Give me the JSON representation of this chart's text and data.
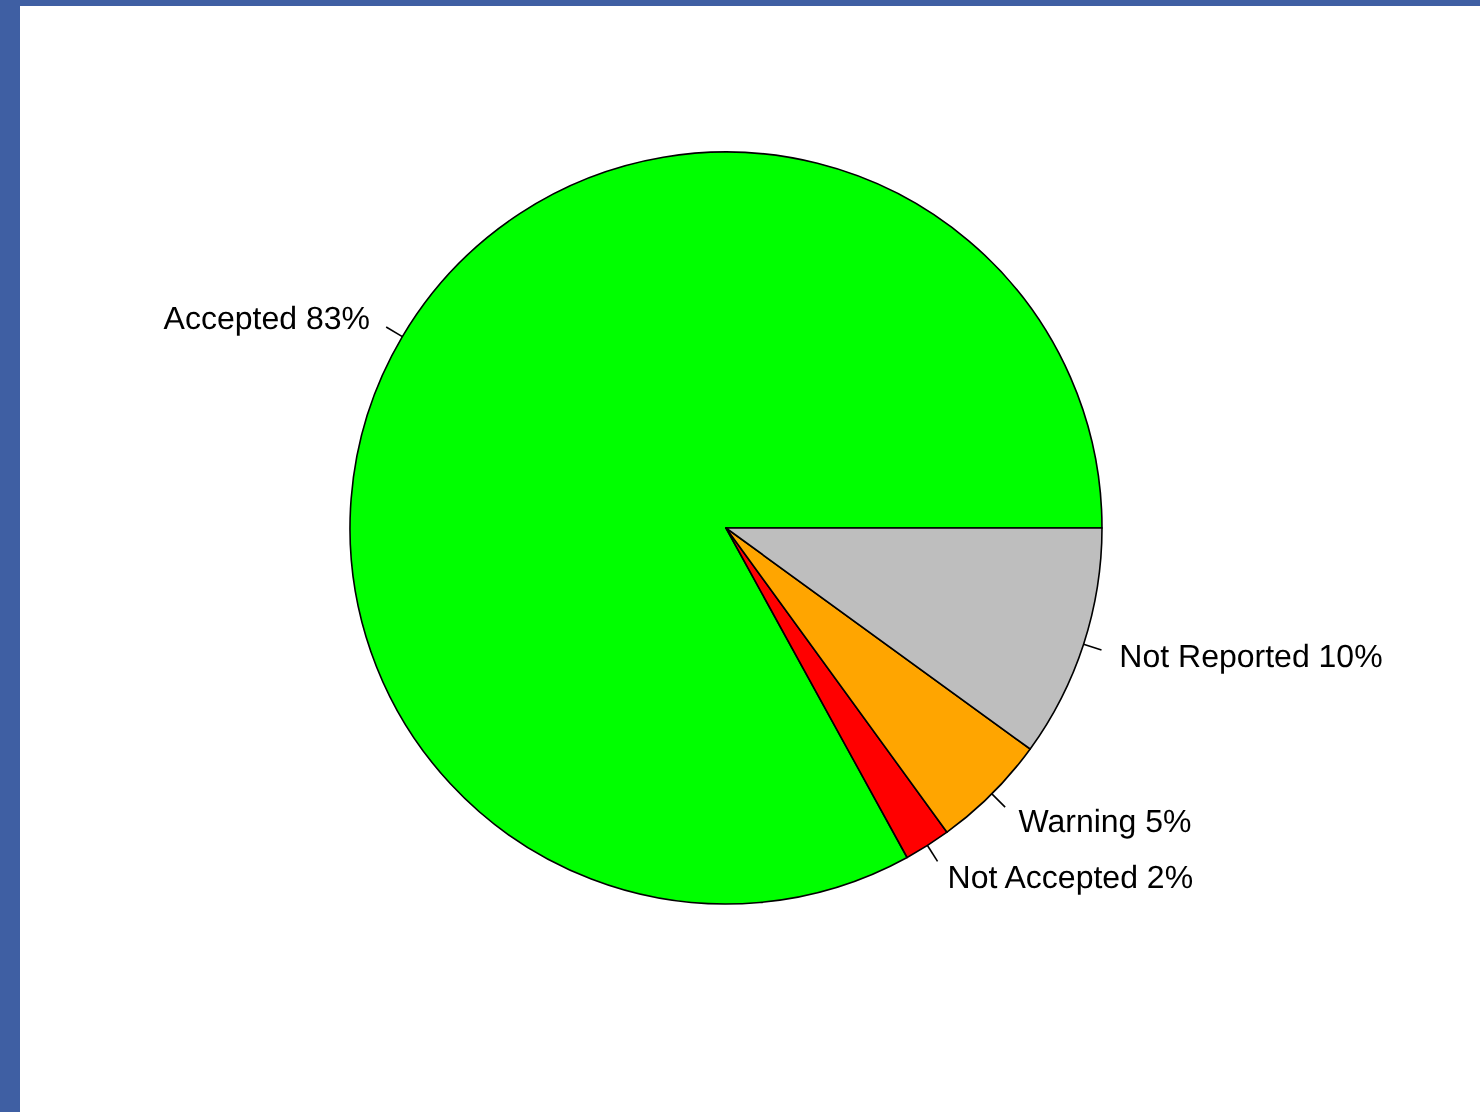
{
  "chart_data": {
    "type": "pie",
    "categories": [
      "Accepted",
      "Not Accepted",
      "Warning",
      "Not Reported"
    ],
    "values": [
      83,
      2,
      5,
      10
    ],
    "value_labels": [
      "83%",
      "2%",
      "5%",
      "10%"
    ],
    "colors": [
      "#00ff00",
      "#ff0000",
      "#ffa500",
      "#bebebe"
    ]
  }
}
